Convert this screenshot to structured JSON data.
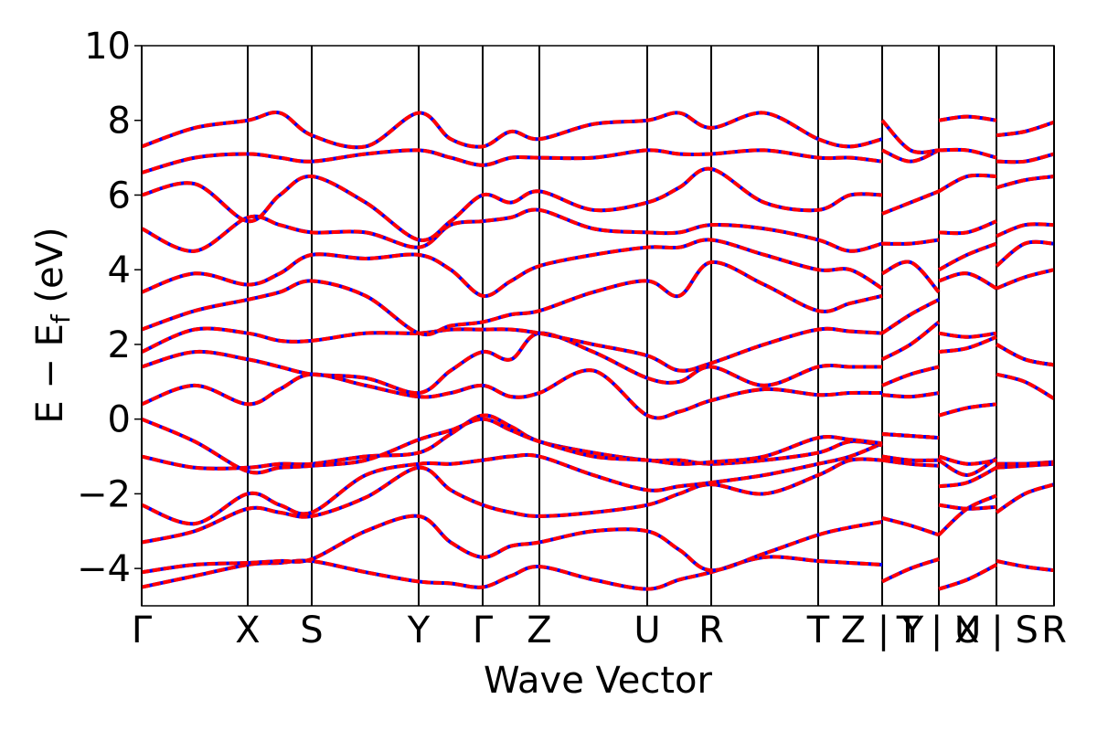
{
  "chart_data": {
    "type": "line",
    "xlabel": "Wave Vector",
    "ylabel": "E − E",
    "ylabel_sub": "f",
    "ylabel_end": " (eV)",
    "xlim": [
      0,
      998
    ],
    "ylim": [
      -5,
      10
    ],
    "yticks": [
      {
        "value": -4,
        "label": "−4"
      },
      {
        "value": -2,
        "label": "−2"
      },
      0,
      2,
      4,
      6,
      8,
      10
    ],
    "xticks": [
      {
        "value": 0,
        "label": "Γ"
      },
      {
        "value": 116,
        "label": "X"
      },
      {
        "value": 186,
        "label": "S"
      },
      {
        "value": 303,
        "label": "Y"
      },
      {
        "value": 373,
        "label": "Γ"
      },
      {
        "value": 435,
        "label": "Z"
      },
      {
        "value": 553,
        "label": "U"
      },
      {
        "value": 623,
        "label": "R"
      },
      {
        "value": 740,
        "label": "T"
      },
      {
        "value": 810,
        "label": "Z | Y"
      },
      {
        "value": 872,
        "label": "T | U"
      },
      {
        "value": 935,
        "label": "X | S"
      },
      {
        "value": 998,
        "label": "R"
      }
    ],
    "dash_color": "#ff0000",
    "x": [
      0,
      58,
      116,
      151,
      186,
      245,
      303,
      338,
      373,
      404,
      435,
      494,
      553,
      588,
      623,
      681,
      740,
      775,
      810,
      810,
      810,
      841,
      872,
      872,
      872,
      903,
      935,
      935,
      935,
      966,
      998
    ],
    "series": [
      {
        "color": "#0000ff",
        "values": [
          -4.5,
          -4.2,
          -3.9,
          -3.85,
          -3.8,
          -4.1,
          -4.35,
          -4.4,
          -4.5,
          -4.2,
          -3.95,
          -4.3,
          -4.55,
          -4.3,
          -4.1,
          -3.7,
          -3.8,
          -3.85,
          -3.9,
          null,
          -4.35,
          -4.0,
          -3.75,
          null,
          -4.55,
          -4.3,
          -3.9,
          null,
          -3.8,
          -3.95,
          -4.05
        ]
      },
      {
        "color": "#0000ff",
        "values": [
          -4.1,
          -3.9,
          -3.85,
          -3.8,
          -3.75,
          -3.0,
          -2.6,
          -3.3,
          -3.7,
          -3.4,
          -3.3,
          -3.0,
          -3.0,
          -3.5,
          -4.05,
          -3.6,
          -3.1,
          -2.9,
          -2.75,
          null,
          -2.65,
          -2.85,
          -3.1,
          null,
          -3.1,
          -2.4,
          -2.05,
          null,
          -2.5,
          -2.0,
          -1.75
        ]
      },
      {
        "color": "#0000ff",
        "values": [
          -3.3,
          -3.0,
          -2.4,
          -2.5,
          -2.6,
          -2.1,
          -1.3,
          -1.9,
          -2.3,
          -2.5,
          -2.6,
          -2.5,
          -2.3,
          -2.0,
          -1.75,
          -2.0,
          -1.5,
          -1.1,
          -1.1,
          null,
          -1.1,
          -1.2,
          -1.25,
          null,
          -2.3,
          -2.4,
          -2.35,
          null,
          -1.3,
          -1.25,
          -1.2
        ]
      },
      {
        "color": "#0000ff",
        "values": [
          -2.3,
          -2.8,
          -2.0,
          -2.3,
          -2.5,
          -1.5,
          -1.2,
          -1.2,
          -1.1,
          -1.0,
          -1.0,
          -1.5,
          -1.9,
          -1.8,
          -1.7,
          -1.5,
          -1.2,
          -1.0,
          -0.65,
          null,
          -1.0,
          -1.1,
          -1.1,
          null,
          -1.8,
          -1.7,
          -1.3,
          null,
          -1.25,
          -1.2,
          -1.15
        ]
      },
      {
        "color": "#0000ff",
        "values": [
          -1.0,
          -1.3,
          -1.3,
          -1.2,
          -1.2,
          -1.0,
          -0.9,
          -0.4,
          0.1,
          -0.2,
          -0.6,
          -0.9,
          -1.1,
          -1.1,
          -1.2,
          -1.1,
          -0.9,
          -0.6,
          -0.7,
          null,
          -0.4,
          -0.45,
          -0.5,
          null,
          -1.1,
          -1.5,
          -1.05,
          null,
          -1.2,
          -1.2,
          -1.2
        ]
      },
      {
        "color": "#0000ff",
        "values": [
          0.0,
          -0.6,
          -1.4,
          -1.3,
          -1.25,
          -1.1,
          -0.55,
          -0.3,
          0.0,
          -0.3,
          -0.6,
          -1.0,
          -1.1,
          -1.2,
          -1.15,
          -1.0,
          -0.5,
          -0.55,
          -0.65,
          null,
          -0.4,
          -0.45,
          -0.5,
          null,
          -1.0,
          -1.2,
          -1.1,
          null,
          -1.2,
          -1.2,
          -1.2
        ]
      },
      {
        "color": "#0000ff",
        "values": [
          0.4,
          0.9,
          0.4,
          0.8,
          1.2,
          0.9,
          0.6,
          0.7,
          0.9,
          0.6,
          0.7,
          1.3,
          0.1,
          0.2,
          0.5,
          0.8,
          0.65,
          0.7,
          0.7,
          null,
          0.65,
          0.6,
          0.7,
          null,
          0.1,
          0.3,
          0.4,
          null,
          1.2,
          1.0,
          0.55
        ]
      },
      {
        "color": "#0000ff",
        "values": [
          1.4,
          1.8,
          1.6,
          1.4,
          1.2,
          1.1,
          0.7,
          1.3,
          1.8,
          1.6,
          2.3,
          1.8,
          1.1,
          1.0,
          1.4,
          0.9,
          1.4,
          1.4,
          1.4,
          null,
          0.9,
          1.2,
          1.4,
          null,
          1.8,
          1.9,
          2.2,
          null,
          2.0,
          1.6,
          1.45
        ]
      },
      {
        "color": "#0000ff",
        "values": [
          1.8,
          2.4,
          2.3,
          2.1,
          2.1,
          2.3,
          2.3,
          2.4,
          2.4,
          2.4,
          2.3,
          2.0,
          1.7,
          1.3,
          1.5,
          2.0,
          2.4,
          2.35,
          2.3,
          null,
          1.6,
          2.0,
          2.6,
          null,
          2.3,
          2.2,
          2.3,
          null,
          2.0,
          1.6,
          1.45
        ]
      },
      {
        "color": "#0000ff",
        "values": [
          2.4,
          2.9,
          3.2,
          3.4,
          3.7,
          3.3,
          2.3,
          2.5,
          2.6,
          2.8,
          2.9,
          3.4,
          3.7,
          3.3,
          4.2,
          3.6,
          2.9,
          3.1,
          3.3,
          null,
          2.3,
          2.8,
          3.2,
          null,
          3.7,
          3.9,
          3.5,
          null,
          3.5,
          3.8,
          4.0
        ]
      },
      {
        "color": "#0000ff",
        "values": [
          3.4,
          3.9,
          3.6,
          3.9,
          4.4,
          4.3,
          4.4,
          4.0,
          3.3,
          3.7,
          4.1,
          4.4,
          4.6,
          4.6,
          4.8,
          4.4,
          4.0,
          4.0,
          3.5,
          null,
          3.9,
          4.2,
          3.4,
          null,
          4.0,
          4.4,
          4.7,
          null,
          4.1,
          4.7,
          4.7
        ]
      },
      {
        "color": "#0000ff",
        "values": [
          5.1,
          4.5,
          5.4,
          5.2,
          5.0,
          5.0,
          4.6,
          5.2,
          5.3,
          5.4,
          5.6,
          5.1,
          5.0,
          5.0,
          5.2,
          5.1,
          4.8,
          4.5,
          4.7,
          null,
          4.7,
          4.7,
          4.8,
          null,
          5.0,
          5.0,
          5.3,
          null,
          4.9,
          5.2,
          5.2
        ]
      },
      {
        "color": "#0000ff",
        "values": [
          6.0,
          6.3,
          5.3,
          6.0,
          6.5,
          5.8,
          4.8,
          5.3,
          6.0,
          5.8,
          6.1,
          5.6,
          5.8,
          6.2,
          6.7,
          5.8,
          5.6,
          6.0,
          6.0,
          null,
          5.5,
          5.8,
          6.1,
          null,
          6.1,
          6.5,
          6.5,
          null,
          6.2,
          6.4,
          6.5
        ]
      },
      {
        "color": "#0000ff",
        "values": [
          6.6,
          7.0,
          7.1,
          7.0,
          6.9,
          7.1,
          7.2,
          7.0,
          6.8,
          7.0,
          7.0,
          7.0,
          7.2,
          7.1,
          7.1,
          7.2,
          7.0,
          7.0,
          6.9,
          null,
          7.2,
          6.9,
          7.2,
          null,
          7.2,
          7.2,
          7.0,
          null,
          6.9,
          6.9,
          7.1
        ]
      },
      {
        "color": "#0000ff",
        "values": [
          7.3,
          7.8,
          8.0,
          8.2,
          7.6,
          7.3,
          8.2,
          7.5,
          7.3,
          7.7,
          7.5,
          7.9,
          8.0,
          8.2,
          7.8,
          8.2,
          7.5,
          7.3,
          7.5,
          null,
          8.0,
          7.2,
          7.2,
          null,
          8.0,
          8.1,
          8.0,
          null,
          7.6,
          7.7,
          7.95
        ]
      }
    ]
  }
}
